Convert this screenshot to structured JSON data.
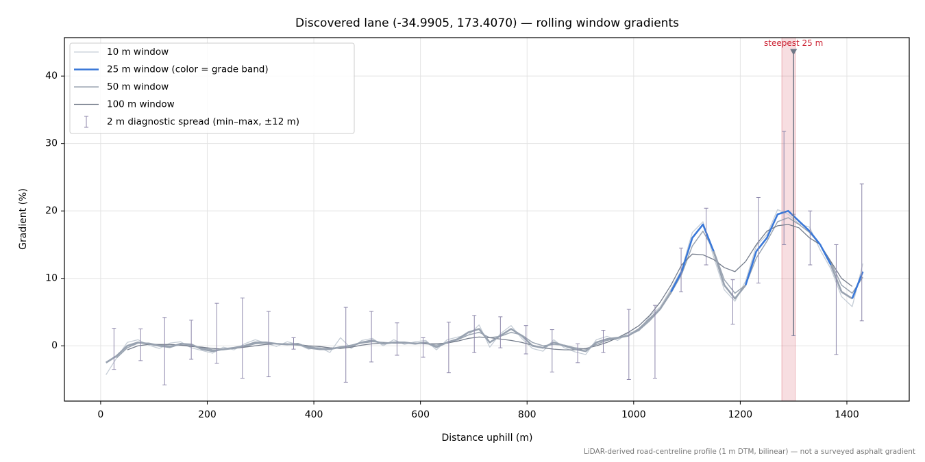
{
  "chart_data": {
    "type": "line",
    "title": "Discovered lane (-34.9905, 173.4070) — rolling window gradients",
    "x_label": "Distance uphill (m)",
    "y_label": "Gradient (%)",
    "footnote": "LiDAR-derived road-centreline profile (1 m DTM, bilinear) — not a surveyed asphalt gradient",
    "xlim": [
      -68,
      1517
    ],
    "ylim": [
      -8.2,
      45.7
    ],
    "xticks": [
      0,
      200,
      400,
      600,
      800,
      1000,
      1200,
      1400
    ],
    "yticks": [
      0,
      10,
      20,
      30,
      40
    ],
    "grid": true,
    "legend": "upper left",
    "x": [
      10,
      30,
      50,
      70,
      90,
      110,
      130,
      150,
      170,
      190,
      210,
      230,
      250,
      270,
      290,
      310,
      330,
      350,
      370,
      390,
      410,
      430,
      450,
      470,
      490,
      510,
      530,
      550,
      570,
      590,
      610,
      630,
      650,
      670,
      690,
      710,
      730,
      750,
      770,
      790,
      810,
      830,
      850,
      870,
      890,
      910,
      930,
      950,
      970,
      990,
      1010,
      1030,
      1050,
      1070,
      1090,
      1110,
      1130,
      1150,
      1170,
      1190,
      1210,
      1230,
      1250,
      1270,
      1290,
      1310,
      1330,
      1350,
      1370,
      1390,
      1410,
      1430
    ],
    "series": [
      {
        "name": "10 m window",
        "color": "#c5cdd6",
        "width": 1.3,
        "values": [
          -4.3,
          -1.8,
          0.5,
          0.9,
          0.1,
          -0.4,
          0.4,
          0.6,
          -0.3,
          -0.7,
          -1.1,
          -0.2,
          -0.6,
          0.3,
          0.9,
          0.4,
          -0.1,
          0.6,
          0.2,
          -0.5,
          -0.2,
          -1.0,
          1.2,
          -0.4,
          0.8,
          1.1,
          0.0,
          0.9,
          0.2,
          0.6,
          0.8,
          -0.6,
          0.9,
          1.3,
          1.6,
          3.1,
          -0.2,
          1.8,
          3.0,
          1.1,
          -0.4,
          -0.8,
          0.9,
          -0.3,
          -0.9,
          -1.3,
          0.9,
          1.4,
          0.8,
          1.9,
          2.2,
          4.4,
          5.8,
          8.4,
          11.3,
          16.8,
          18.4,
          13.2,
          8.3,
          6.6,
          9.6,
          14.8,
          16.5,
          20.2,
          19.5,
          18.1,
          17.6,
          14.2,
          11.4,
          7.3,
          5.8,
          12.2
        ]
      },
      {
        "name": "25 m window (color = grade band)",
        "color": "#3a78d8",
        "width": 2.6,
        "values": [
          -2.5,
          -1.5,
          0.0,
          0.5,
          0.3,
          0.0,
          -0.2,
          0.3,
          0.2,
          -0.5,
          -0.8,
          -0.5,
          -0.3,
          0.0,
          0.5,
          0.5,
          0.3,
          0.2,
          0.3,
          -0.3,
          -0.5,
          -0.5,
          -0.2,
          0.0,
          0.5,
          0.8,
          0.3,
          0.5,
          0.5,
          0.3,
          0.5,
          -0.2,
          0.5,
          1.0,
          2.0,
          2.5,
          0.5,
          1.5,
          2.5,
          1.5,
          0.0,
          -0.3,
          0.5,
          0.0,
          -0.5,
          -0.8,
          0.5,
          1.0,
          1.2,
          1.5,
          2.5,
          4.0,
          5.5,
          8.0,
          11.0,
          16.0,
          18.0,
          14.0,
          9.0,
          7.0,
          9.0,
          14.0,
          16.0,
          19.5,
          20.0,
          18.5,
          17.0,
          15.0,
          12.0,
          8.0,
          7.0,
          11.0
        ]
      },
      {
        "name": "50 m window",
        "color": "#9aa4b1",
        "width": 1.5,
        "values": [
          null,
          -1.8,
          -0.3,
          0.4,
          0.4,
          0.1,
          0.0,
          0.1,
          0.0,
          -0.3,
          -0.6,
          -0.6,
          -0.4,
          -0.1,
          0.3,
          0.4,
          0.3,
          0.2,
          0.1,
          -0.1,
          -0.4,
          -0.4,
          -0.2,
          0.1,
          0.4,
          0.6,
          0.5,
          0.4,
          0.4,
          0.4,
          0.3,
          0.1,
          0.4,
          0.9,
          1.6,
          2.0,
          1.2,
          1.4,
          2.0,
          1.6,
          0.5,
          0.0,
          0.2,
          0.1,
          -0.3,
          -0.5,
          0.2,
          0.8,
          1.1,
          1.5,
          2.3,
          3.7,
          5.4,
          7.8,
          10.6,
          14.8,
          17.0,
          14.2,
          9.8,
          7.8,
          9.0,
          13.0,
          15.5,
          18.4,
          19.0,
          18.0,
          16.8,
          15.0,
          12.4,
          9.0,
          7.8,
          10.2
        ]
      },
      {
        "name": "100 m window",
        "color": "#737b8a",
        "width": 1.3,
        "values": [
          null,
          null,
          -0.6,
          0.0,
          0.2,
          0.2,
          0.2,
          0.1,
          -0.1,
          -0.2,
          -0.4,
          -0.5,
          -0.4,
          -0.2,
          0.0,
          0.2,
          0.3,
          0.3,
          0.2,
          0.0,
          -0.1,
          -0.3,
          -0.4,
          -0.2,
          0.1,
          0.3,
          0.4,
          0.4,
          0.4,
          0.4,
          0.3,
          0.3,
          0.4,
          0.7,
          1.1,
          1.3,
          1.2,
          1.0,
          0.8,
          0.5,
          0.1,
          -0.3,
          -0.5,
          -0.6,
          -0.6,
          -0.4,
          0.0,
          0.5,
          1.2,
          2.0,
          3.0,
          4.5,
          6.5,
          9.0,
          12.0,
          13.6,
          13.5,
          12.8,
          11.6,
          11.0,
          12.5,
          15.0,
          17.0,
          17.8,
          18.0,
          17.5,
          16.0,
          15.0,
          12.5,
          10.0,
          8.8,
          null
        ]
      }
    ],
    "grade_bands": [
      {
        "from": -10,
        "to": 10,
        "color": "#98a2b0"
      },
      {
        "from": 10,
        "to": 50,
        "color": "#3a78d8"
      }
    ],
    "spread": {
      "name": "2 m diagnostic spread (min–max, ±12 m)",
      "color": "#8c86aa",
      "x": [
        25,
        75,
        120,
        170,
        218,
        266,
        315,
        362,
        460,
        508,
        556,
        605,
        653,
        701,
        750,
        798,
        847,
        895,
        943,
        991,
        1040,
        1089,
        1136,
        1186,
        1234,
        1282,
        1300,
        1331,
        1380,
        1428
      ],
      "lo": [
        -3.5,
        -2.2,
        -5.8,
        -2.0,
        -2.6,
        -4.8,
        -4.6,
        -0.5,
        -5.4,
        -2.4,
        -1.4,
        -1.7,
        -4.0,
        -1.0,
        -0.3,
        -1.2,
        -3.9,
        -2.5,
        -1.0,
        -5.0,
        -4.8,
        8.0,
        12.0,
        3.2,
        9.3,
        15.0,
        1.5,
        12.0,
        -1.3,
        3.7
      ],
      "hi": [
        2.6,
        2.5,
        4.2,
        3.8,
        6.3,
        7.1,
        5.1,
        1.2,
        5.7,
        5.1,
        3.4,
        1.2,
        3.5,
        4.5,
        4.3,
        3.0,
        2.4,
        0.3,
        2.3,
        5.4,
        6.0,
        14.5,
        20.4,
        9.8,
        22.0,
        31.8,
        19.5,
        20.0,
        15.0,
        24.0
      ]
    },
    "steepest": {
      "label": "steepest 25 m",
      "from": 1278,
      "to": 1303,
      "x": 1300,
      "y": 43.5,
      "color": "#cc2233"
    }
  }
}
